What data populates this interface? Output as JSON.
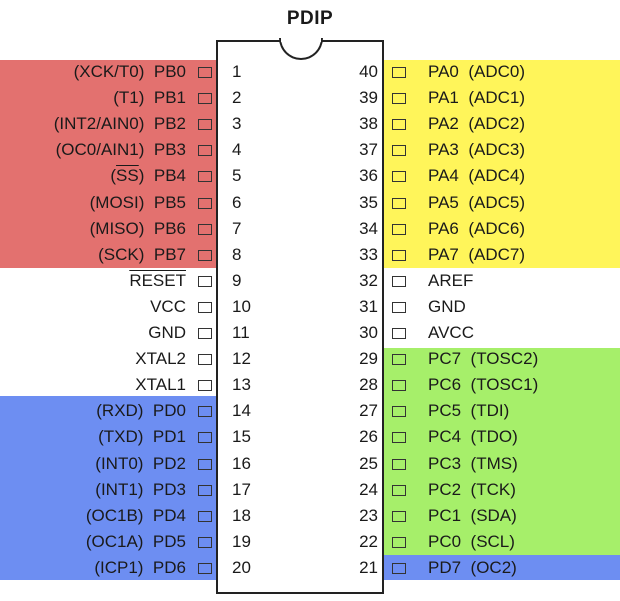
{
  "title": "PDIP",
  "colors": {
    "port_b": "#e3716f",
    "port_a": "#fff55a",
    "port_c": "#a6ef6a",
    "port_d": "#6d8ef2"
  },
  "left_pins": [
    {
      "num": "1",
      "func": "(XCK/T0)",
      "name": "PB0",
      "group": "port_b"
    },
    {
      "num": "2",
      "func": "(T1)",
      "name": "PB1",
      "group": "port_b"
    },
    {
      "num": "3",
      "func": "(INT2/AIN0)",
      "name": "PB2",
      "group": "port_b"
    },
    {
      "num": "4",
      "func": "(OC0/AIN1)",
      "name": "PB3",
      "group": "port_b"
    },
    {
      "num": "5",
      "func": "(SS)",
      "name": "PB4",
      "group": "port_b",
      "overline_func": true
    },
    {
      "num": "6",
      "func": "(MOSI)",
      "name": "PB5",
      "group": "port_b"
    },
    {
      "num": "7",
      "func": "(MISO)",
      "name": "PB6",
      "group": "port_b"
    },
    {
      "num": "8",
      "func": "(SCK)",
      "name": "PB7",
      "group": "port_b"
    },
    {
      "num": "9",
      "func": "",
      "name": "RESET",
      "group": "none",
      "overline_name": true
    },
    {
      "num": "10",
      "func": "",
      "name": "VCC",
      "group": "none"
    },
    {
      "num": "11",
      "func": "",
      "name": "GND",
      "group": "none"
    },
    {
      "num": "12",
      "func": "",
      "name": "XTAL2",
      "group": "none"
    },
    {
      "num": "13",
      "func": "",
      "name": "XTAL1",
      "group": "none"
    },
    {
      "num": "14",
      "func": "(RXD)",
      "name": "PD0",
      "group": "port_d"
    },
    {
      "num": "15",
      "func": "(TXD)",
      "name": "PD1",
      "group": "port_d"
    },
    {
      "num": "16",
      "func": "(INT0)",
      "name": "PD2",
      "group": "port_d"
    },
    {
      "num": "17",
      "func": "(INT1)",
      "name": "PD3",
      "group": "port_d"
    },
    {
      "num": "18",
      "func": "(OC1B)",
      "name": "PD4",
      "group": "port_d"
    },
    {
      "num": "19",
      "func": "(OC1A)",
      "name": "PD5",
      "group": "port_d"
    },
    {
      "num": "20",
      "func": "(ICP1)",
      "name": "PD6",
      "group": "port_d"
    }
  ],
  "right_pins": [
    {
      "num": "40",
      "name": "PA0",
      "func": "(ADC0)",
      "group": "port_a"
    },
    {
      "num": "39",
      "name": "PA1",
      "func": "(ADC1)",
      "group": "port_a"
    },
    {
      "num": "38",
      "name": "PA2",
      "func": "(ADC2)",
      "group": "port_a"
    },
    {
      "num": "37",
      "name": "PA3",
      "func": "(ADC3)",
      "group": "port_a"
    },
    {
      "num": "36",
      "name": "PA4",
      "func": "(ADC4)",
      "group": "port_a"
    },
    {
      "num": "35",
      "name": "PA5",
      "func": "(ADC5)",
      "group": "port_a"
    },
    {
      "num": "34",
      "name": "PA6",
      "func": "(ADC6)",
      "group": "port_a"
    },
    {
      "num": "33",
      "name": "PA7",
      "func": "(ADC7)",
      "group": "port_a"
    },
    {
      "num": "32",
      "name": "AREF",
      "func": "",
      "group": "none"
    },
    {
      "num": "31",
      "name": "GND",
      "func": "",
      "group": "none"
    },
    {
      "num": "30",
      "name": "AVCC",
      "func": "",
      "group": "none"
    },
    {
      "num": "29",
      "name": "PC7",
      "func": "(TOSC2)",
      "group": "port_c"
    },
    {
      "num": "28",
      "name": "PC6",
      "func": "(TOSC1)",
      "group": "port_c"
    },
    {
      "num": "27",
      "name": "PC5",
      "func": "(TDI)",
      "group": "port_c"
    },
    {
      "num": "26",
      "name": "PC4",
      "func": "(TDO)",
      "group": "port_c"
    },
    {
      "num": "25",
      "name": "PC3",
      "func": "(TMS)",
      "group": "port_c"
    },
    {
      "num": "24",
      "name": "PC2",
      "func": "(TCK)",
      "group": "port_c"
    },
    {
      "num": "23",
      "name": "PC1",
      "func": "(SDA)",
      "group": "port_c"
    },
    {
      "num": "22",
      "name": "PC0",
      "func": "(SCL)",
      "group": "port_c"
    },
    {
      "num": "21",
      "name": "PD7",
      "func": "(OC2)",
      "group": "port_d"
    }
  ]
}
